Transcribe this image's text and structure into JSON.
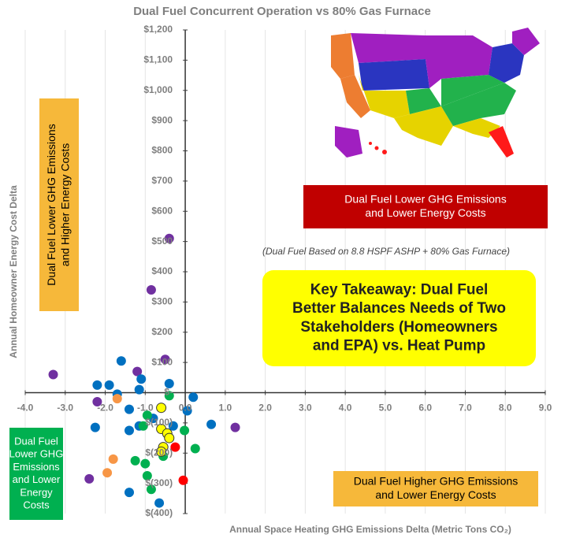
{
  "chart_data": {
    "type": "scatter",
    "title": "Dual Fuel Concurrent Operation vs 80% Gas Furnace",
    "x_label": "Annual Space Heating GHG Emissions Delta (Metric Tons CO₂)",
    "y_label": "Annual Homeowner Energy Cost Delta",
    "xlim": [
      -4,
      9
    ],
    "ylim": [
      -400,
      1200
    ],
    "xticks": [
      {
        "value": -4,
        "label": "-4.0"
      },
      {
        "value": -3,
        "label": "-3.0"
      },
      {
        "value": -2,
        "label": "-2.0"
      },
      {
        "value": -1,
        "label": "-1.0"
      },
      {
        "value": 0,
        "label": "0.0"
      },
      {
        "value": 1,
        "label": "1.0"
      },
      {
        "value": 2,
        "label": "2.0"
      },
      {
        "value": 3,
        "label": "3.0"
      },
      {
        "value": 4,
        "label": "4.0"
      },
      {
        "value": 5,
        "label": "5.0"
      },
      {
        "value": 6,
        "label": "6.0"
      },
      {
        "value": 7,
        "label": "7.0"
      },
      {
        "value": 8,
        "label": "8.0"
      },
      {
        "value": 9,
        "label": "9.0"
      }
    ],
    "yticks": [
      {
        "value": -400,
        "label": "$(400)"
      },
      {
        "value": -300,
        "label": "$(300)"
      },
      {
        "value": -200,
        "label": "$(200)"
      },
      {
        "value": -100,
        "label": "$(100)"
      },
      {
        "value": 0,
        "label": "$-"
      },
      {
        "value": 100,
        "label": "$100"
      },
      {
        "value": 200,
        "label": "$200"
      },
      {
        "value": 300,
        "label": "$300"
      },
      {
        "value": 400,
        "label": "$400"
      },
      {
        "value": 500,
        "label": "$500"
      },
      {
        "value": 600,
        "label": "$600"
      },
      {
        "value": 700,
        "label": "$700"
      },
      {
        "value": 800,
        "label": "$800"
      },
      {
        "value": 900,
        "label": "$900"
      },
      {
        "value": 1000,
        "label": "$1,000"
      },
      {
        "value": 1100,
        "label": "$1,100"
      },
      {
        "value": 1200,
        "label": "$1,200"
      }
    ],
    "grid": true,
    "series": [
      {
        "color": "#7030a0",
        "x": [
          -0.4,
          -0.85,
          -3.3,
          -2.2,
          1.25,
          -2.4,
          -1.2,
          -0.5
        ],
        "values": [
          510,
          340,
          60,
          -30,
          -115,
          -285,
          70,
          110
        ]
      },
      {
        "color": "#0070c0",
        "x": [
          -1.6,
          -2.2,
          -1.9,
          -1.7,
          -1.1,
          -1.15,
          -0.4,
          0.2,
          0.05,
          0.65,
          -2.25,
          -1.4,
          -1.4,
          -1.15,
          -0.8,
          -0.3,
          -1.4,
          -0.65
        ],
        "values": [
          105,
          25,
          25,
          -5,
          45,
          10,
          30,
          -15,
          -60,
          -105,
          -115,
          -55,
          -125,
          -110,
          -85,
          -110,
          -330,
          -365
        ]
      },
      {
        "color": "#00b050",
        "x": [
          -0.95,
          -1.05,
          -0.4,
          -0.02,
          0.25,
          -1.25,
          -1.0,
          -0.95,
          -0.85,
          -0.55
        ],
        "values": [
          -75,
          -110,
          -10,
          -125,
          -185,
          -225,
          -235,
          -275,
          -320,
          -210
        ]
      },
      {
        "color": "#f79646",
        "x": [
          -1.7,
          -1.8,
          -1.95
        ],
        "values": [
          -20,
          -220,
          -265
        ]
      },
      {
        "color": "#ffff00",
        "x": [
          -0.6,
          -0.6,
          -0.45,
          -0.4,
          -0.55,
          -0.6
        ],
        "values": [
          -50,
          -120,
          -135,
          -150,
          -180,
          -195
        ]
      },
      {
        "color": "#ff0000",
        "x": [
          -0.25,
          -0.05
        ],
        "values": [
          -180,
          -290
        ]
      }
    ],
    "annotations": [
      {
        "lines": [
          "Dual Fuel Lower GHG Emissions",
          "and Higher Energy Costs"
        ]
      },
      {
        "lines": [
          "Dual Fuel Lower GHG Emissions",
          "and Lower Energy Costs"
        ]
      },
      {
        "lines": [
          "(Dual Fuel Based on 8.8 HSPF ASHP + 80% Gas Furnace)"
        ]
      },
      {
        "lines": [
          "Key Takeaway:  Dual Fuel",
          "Better Balances Needs of Two",
          "Stakeholders (Homeowners",
          "and EPA) vs. Heat Pump"
        ]
      },
      {
        "lines": [
          "Dual Fuel",
          "Lower GHG",
          "Emissions",
          "and Lower",
          "Energy",
          "Costs"
        ]
      },
      {
        "lines": [
          "Dual Fuel Higher GHG Emissions",
          "and Lower Energy Costs"
        ]
      }
    ]
  }
}
